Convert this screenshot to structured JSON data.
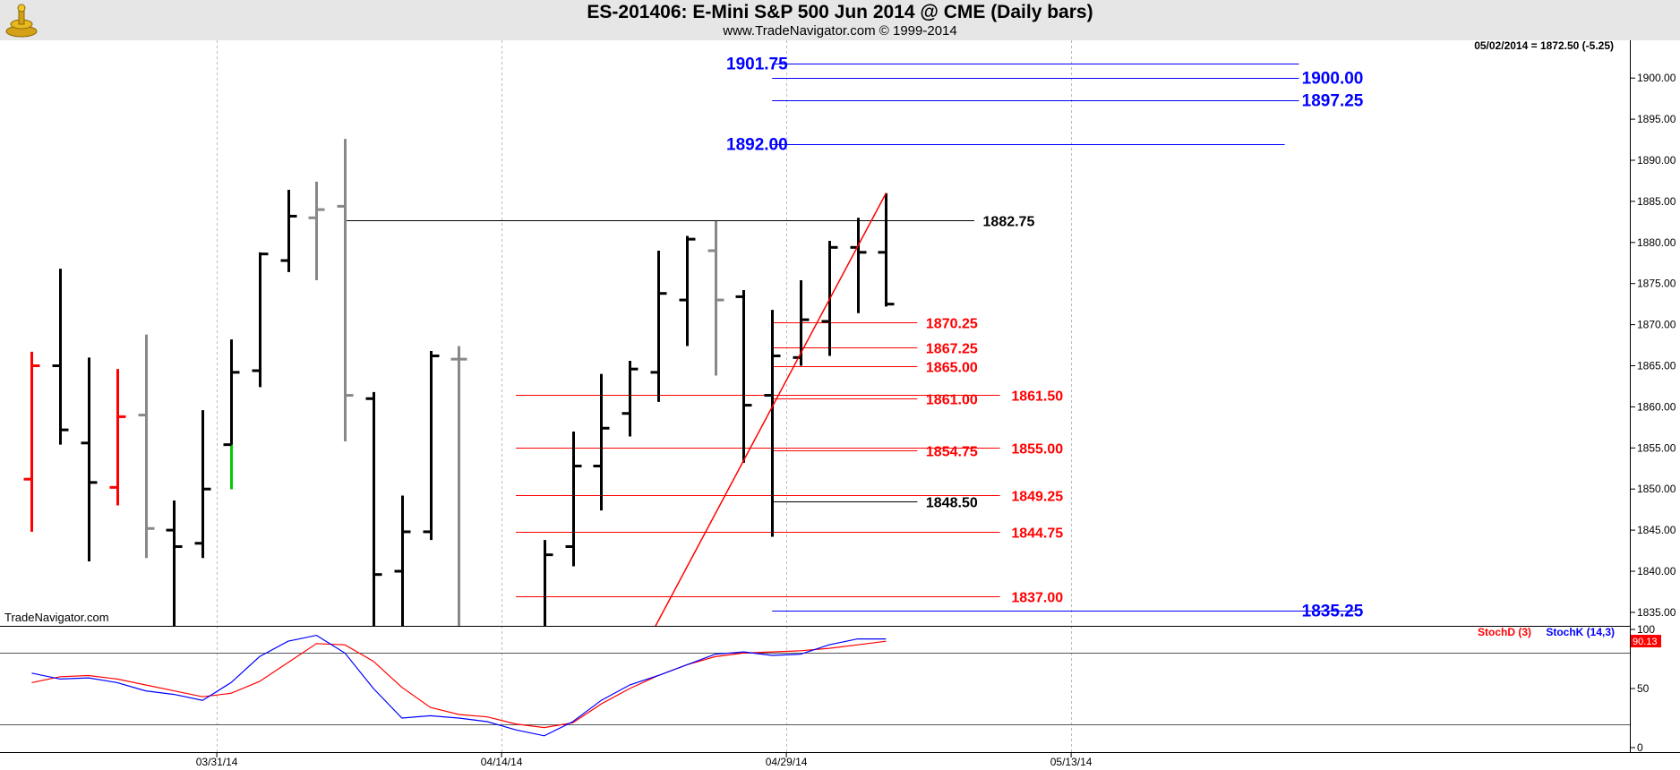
{
  "header": {
    "title": "ES-201406:  E-Mini S&P 500 Jun 2014 @ CME  (Daily bars)",
    "copyright": "www.TradeNavigator.com © 1999-2014"
  },
  "watermark": "TradeNavigator.com",
  "last_readout": "05/02/2014 = 1872.50 (-5.25)",
  "colors": {
    "bar_black": "#000000",
    "bar_gray": "#888888",
    "bar_red": "#ff0000",
    "bar_green": "#00cc00",
    "level_blue": "#0000ff",
    "level_red": "#ff0000",
    "stoch_d": "#ff0000",
    "stoch_k": "#0000ff",
    "grid": "#bbbbbb"
  },
  "chart_data": [
    {
      "type": "ohlc",
      "price_axis": {
        "min": 1832,
        "max": 1903,
        "ticks": [
          "1835.00",
          "1840.00",
          "1845.00",
          "1850.00",
          "1855.00",
          "1860.00",
          "1865.00",
          "1870.00",
          "1875.00",
          "1880.00",
          "1885.00",
          "1890.00",
          "1895.00",
          "1900.00"
        ]
      },
      "date_ticks": [
        {
          "label": "03/31/14",
          "index": 7.5
        },
        {
          "label": "04/14/14",
          "index": 17.5
        },
        {
          "label": "04/29/14",
          "index": 27.5
        },
        {
          "label": "05/13/14",
          "index": 37.5
        }
      ],
      "bars": [
        {
          "i": 1,
          "o": 1851.2,
          "h": 1866.7,
          "l": 1844.8,
          "c": 1865.0,
          "color": "red"
        },
        {
          "i": 2,
          "o": 1865.0,
          "h": 1876.8,
          "l": 1855.4,
          "c": 1857.2,
          "color": "black"
        },
        {
          "i": 3,
          "o": 1855.6,
          "h": 1866.0,
          "l": 1841.2,
          "c": 1850.8,
          "color": "black"
        },
        {
          "i": 4,
          "o": 1850.2,
          "h": 1864.6,
          "l": 1848.0,
          "c": 1858.8,
          "color": "red"
        },
        {
          "i": 5,
          "o": 1859.0,
          "h": 1868.8,
          "l": 1841.6,
          "c": 1845.2,
          "color": "gray"
        },
        {
          "i": 6,
          "o": 1845.0,
          "h": 1848.6,
          "l": 1832.0,
          "c": 1843.0,
          "color": "black"
        },
        {
          "i": 7,
          "o": 1843.4,
          "h": 1859.6,
          "l": 1841.6,
          "c": 1850.0,
          "color": "black"
        },
        {
          "i": 8,
          "o": 1855.4,
          "h": 1868.2,
          "l": 1850.0,
          "c": 1864.2,
          "color": "black",
          "low_segment": "green"
        },
        {
          "i": 9,
          "o": 1864.4,
          "h": 1878.8,
          "l": 1862.4,
          "c": 1878.6,
          "color": "black"
        },
        {
          "i": 10,
          "o": 1877.8,
          "h": 1886.4,
          "l": 1876.4,
          "c": 1883.2,
          "color": "black"
        },
        {
          "i": 11,
          "o": 1883.0,
          "h": 1887.4,
          "l": 1875.4,
          "c": 1884.0,
          "color": "gray"
        },
        {
          "i": 12,
          "o": 1884.4,
          "h": 1892.6,
          "l": 1855.8,
          "c": 1861.4,
          "color": "gray"
        },
        {
          "i": 13,
          "o": 1861.0,
          "h": 1861.8,
          "l": 1832.6,
          "c": 1839.6,
          "color": "black"
        },
        {
          "i": 14,
          "o": 1840.0,
          "h": 1849.2,
          "l": 1832.0,
          "c": 1844.8,
          "color": "black"
        },
        {
          "i": 15,
          "o": 1844.8,
          "h": 1866.8,
          "l": 1843.8,
          "c": 1866.2,
          "color": "black"
        },
        {
          "i": 16,
          "o": 1865.8,
          "h": 1867.4,
          "l": 1832.0,
          "c": 1865.8,
          "color": "gray"
        },
        {
          "i": 19,
          "o": 1832.0,
          "h": 1843.8,
          "l": 1832.0,
          "c": 1842.0,
          "color": "black"
        },
        {
          "i": 20,
          "o": 1843.0,
          "h": 1857.0,
          "l": 1840.6,
          "c": 1852.8,
          "color": "black"
        },
        {
          "i": 21,
          "o": 1852.8,
          "h": 1864.0,
          "l": 1847.4,
          "c": 1857.4,
          "color": "black"
        },
        {
          "i": 22,
          "o": 1859.2,
          "h": 1865.6,
          "l": 1856.4,
          "c": 1864.6,
          "color": "black"
        },
        {
          "i": 23,
          "o": 1864.2,
          "h": 1879.0,
          "l": 1860.6,
          "c": 1873.8,
          "color": "black"
        },
        {
          "i": 24,
          "o": 1873.0,
          "h": 1880.8,
          "l": 1867.4,
          "c": 1880.4,
          "color": "black"
        },
        {
          "i": 25,
          "o": 1879.0,
          "h": 1882.6,
          "l": 1863.8,
          "c": 1873.0,
          "color": "gray"
        },
        {
          "i": 26,
          "o": 1873.4,
          "h": 1874.2,
          "l": 1853.2,
          "c": 1860.2,
          "color": "black"
        },
        {
          "i": 27,
          "o": 1861.4,
          "h": 1871.8,
          "l": 1844.2,
          "c": 1866.2,
          "color": "black"
        },
        {
          "i": 28,
          "o": 1866.0,
          "h": 1875.4,
          "l": 1865.0,
          "c": 1870.6,
          "color": "black"
        },
        {
          "i": 29,
          "o": 1870.4,
          "h": 1880.2,
          "l": 1866.2,
          "c": 1879.4,
          "color": "black"
        },
        {
          "i": 30,
          "o": 1879.4,
          "h": 1883.0,
          "l": 1871.4,
          "c": 1878.8,
          "color": "black"
        },
        {
          "i": 31,
          "o": 1878.8,
          "h": 1886.0,
          "l": 1872.2,
          "c": 1872.5,
          "color": "black"
        }
      ],
      "levels": [
        {
          "value": 1901.75,
          "label": "1901.75",
          "from": 27,
          "to": 45.5,
          "label_side": "left",
          "label_at": 24.5,
          "color": "blue"
        },
        {
          "value": 1900.0,
          "label": "1900.00",
          "from": 27,
          "to": 45.5,
          "label_side": "right",
          "label_at": 45.6,
          "color": "blue"
        },
        {
          "value": 1897.25,
          "label": "1897.25",
          "from": 27,
          "to": 45.5,
          "label_side": "right",
          "label_at": 45.6,
          "color": "blue"
        },
        {
          "value": 1892.0,
          "label": "1892.00",
          "from": 27,
          "to": 45.0,
          "label_side": "left",
          "label_at": 24.5,
          "color": "blue"
        },
        {
          "value": 1882.75,
          "label": "1882.75",
          "from": 12,
          "to": 34.1,
          "label_side": "right",
          "label_at": 34.4,
          "color": "black"
        },
        {
          "value": 1870.25,
          "label": "1870.25",
          "from": 27,
          "to": 32.1,
          "label_side": "right",
          "label_at": 32.4,
          "color": "red"
        },
        {
          "value": 1867.25,
          "label": "1867.25",
          "from": 27,
          "to": 32.1,
          "label_side": "right",
          "label_at": 32.4,
          "color": "red"
        },
        {
          "value": 1865.0,
          "label": "1865.00",
          "from": 27,
          "to": 32.1,
          "label_side": "right",
          "label_at": 32.4,
          "color": "red"
        },
        {
          "value": 1861.5,
          "label": "1861.50",
          "from": 18,
          "to": 35.0,
          "label_side": "right",
          "label_at": 35.4,
          "color": "red"
        },
        {
          "value": 1861.0,
          "label": "1861.00",
          "from": 27,
          "to": 32.1,
          "label_side": "right",
          "label_at": 32.4,
          "color": "red"
        },
        {
          "value": 1855.0,
          "label": "1855.00",
          "from": 18,
          "to": 35.0,
          "label_side": "right",
          "label_at": 35.4,
          "color": "red"
        },
        {
          "value": 1854.75,
          "label": "1854.75",
          "from": 27,
          "to": 32.1,
          "label_side": "right",
          "label_at": 32.4,
          "color": "red"
        },
        {
          "value": 1849.25,
          "label": "1849.25",
          "from": 18,
          "to": 35.0,
          "label_side": "right",
          "label_at": 35.4,
          "color": "red"
        },
        {
          "value": 1848.5,
          "label": "1848.50",
          "from": 27,
          "to": 32.1,
          "label_side": "right",
          "label_at": 32.4,
          "color": "black"
        },
        {
          "value": 1844.75,
          "label": "1844.75",
          "from": 18,
          "to": 35.0,
          "label_side": "right",
          "label_at": 35.4,
          "color": "red"
        },
        {
          "value": 1837.0,
          "label": "1837.00",
          "from": 18,
          "to": 35.0,
          "label_side": "right",
          "label_at": 35.4,
          "color": "red"
        },
        {
          "value": 1835.25,
          "label": "1835.25",
          "from": 27,
          "to": 47.5,
          "label_side": "right",
          "label_at": 45.6,
          "color": "blue"
        }
      ],
      "trendline": {
        "from": {
          "i": 22.7,
          "v": 1832
        },
        "to": {
          "i": 31,
          "v": 1886.0
        },
        "color": "red"
      }
    },
    {
      "type": "line",
      "name": "stochastic",
      "ylim": [
        0,
        100
      ],
      "ticks": [
        "0",
        "50",
        "100"
      ],
      "bands": [
        20,
        80
      ],
      "readout": "90.13",
      "series": [
        {
          "name": "StochD (3)",
          "color": "red",
          "x": [
            1,
            2,
            3,
            4,
            5,
            6,
            7,
            8,
            9,
            10,
            11,
            12,
            13,
            14,
            15,
            16,
            17,
            18,
            19,
            20,
            21,
            22,
            23,
            24,
            25,
            26,
            27,
            28,
            29,
            30,
            31
          ],
          "values": [
            55,
            60,
            61,
            58,
            53,
            48,
            43,
            46,
            56,
            72,
            88,
            87,
            73,
            51,
            34,
            28,
            26,
            20,
            17,
            21,
            37,
            50,
            61,
            70,
            77,
            80,
            81,
            82,
            84,
            87,
            90
          ]
        },
        {
          "name": "StochK (14,3)",
          "color": "blue",
          "x": [
            1,
            2,
            3,
            4,
            5,
            6,
            7,
            8,
            9,
            10,
            11,
            12,
            13,
            14,
            15,
            16,
            17,
            18,
            19,
            20,
            21,
            22,
            23,
            24,
            25,
            26,
            27,
            28,
            29,
            30,
            31
          ],
          "values": [
            63,
            58,
            59,
            55,
            48,
            45,
            40,
            55,
            77,
            90,
            95,
            80,
            50,
            25,
            27,
            25,
            22,
            15,
            10,
            22,
            40,
            53,
            61,
            70,
            79,
            81,
            78,
            79,
            87,
            92,
            92
          ]
        }
      ]
    }
  ]
}
